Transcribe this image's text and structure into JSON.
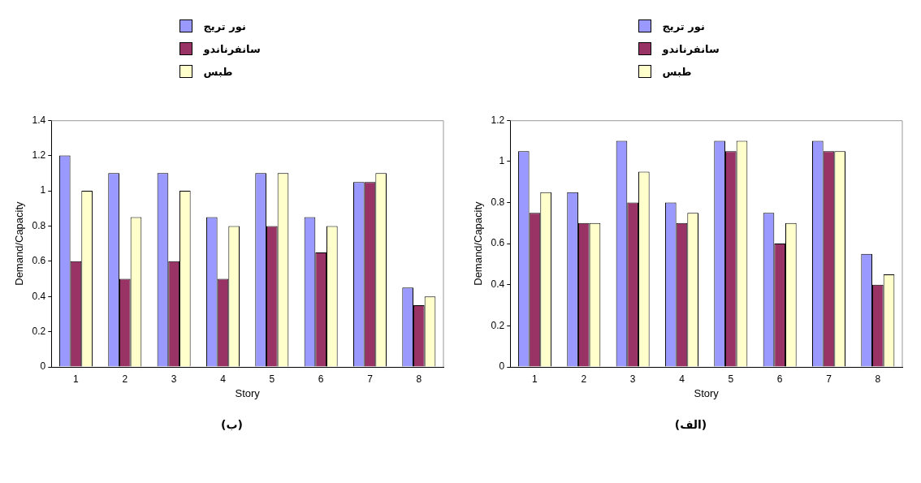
{
  "chart_data": [
    {
      "type": "bar",
      "categories": [
        "1",
        "2",
        "3",
        "4",
        "5",
        "6",
        "7",
        "8"
      ],
      "xlabel": "Story",
      "ylabel": "Demand/Capacity",
      "ylim": [
        0,
        1.4
      ],
      "yticks": [
        0,
        0.2,
        0.4,
        0.6,
        0.8,
        1,
        1.2,
        1.4
      ],
      "grid": false,
      "legend": "top",
      "annotations": [
        "(ب)"
      ],
      "series": [
        {
          "name": "نور تريج",
          "color": "#9999ff",
          "values": [
            1.2,
            1.1,
            1.1,
            0.85,
            1.1,
            0.85,
            1.05,
            0.45
          ]
        },
        {
          "name": "سانفرناندو",
          "color": "#993366",
          "values": [
            0.6,
            0.5,
            0.6,
            0.5,
            0.8,
            0.65,
            1.05,
            0.35
          ]
        },
        {
          "name": "طبس",
          "color": "#ffffcc",
          "values": [
            1.0,
            0.85,
            1.0,
            0.8,
            1.1,
            0.8,
            1.1,
            0.4
          ]
        }
      ]
    },
    {
      "type": "bar",
      "categories": [
        "1",
        "2",
        "3",
        "4",
        "5",
        "6",
        "7",
        "8"
      ],
      "xlabel": "Story",
      "ylabel": "Demand/Capacity",
      "ylim": [
        0,
        1.2
      ],
      "yticks": [
        0,
        0.2,
        0.4,
        0.6,
        0.8,
        1,
        1.2
      ],
      "grid": false,
      "legend": "top",
      "annotations": [
        "(الف)"
      ],
      "series": [
        {
          "name": "نور تريج",
          "color": "#9999ff",
          "values": [
            1.05,
            0.85,
            1.1,
            0.8,
            1.1,
            0.75,
            1.1,
            0.55
          ]
        },
        {
          "name": "سانفرناندو",
          "color": "#993366",
          "values": [
            0.75,
            0.7,
            0.8,
            0.7,
            1.05,
            0.6,
            1.05,
            0.4
          ]
        },
        {
          "name": "طبس",
          "color": "#ffffcc",
          "values": [
            0.85,
            0.7,
            0.95,
            0.75,
            1.1,
            0.7,
            1.05,
            0.45
          ]
        }
      ]
    }
  ]
}
